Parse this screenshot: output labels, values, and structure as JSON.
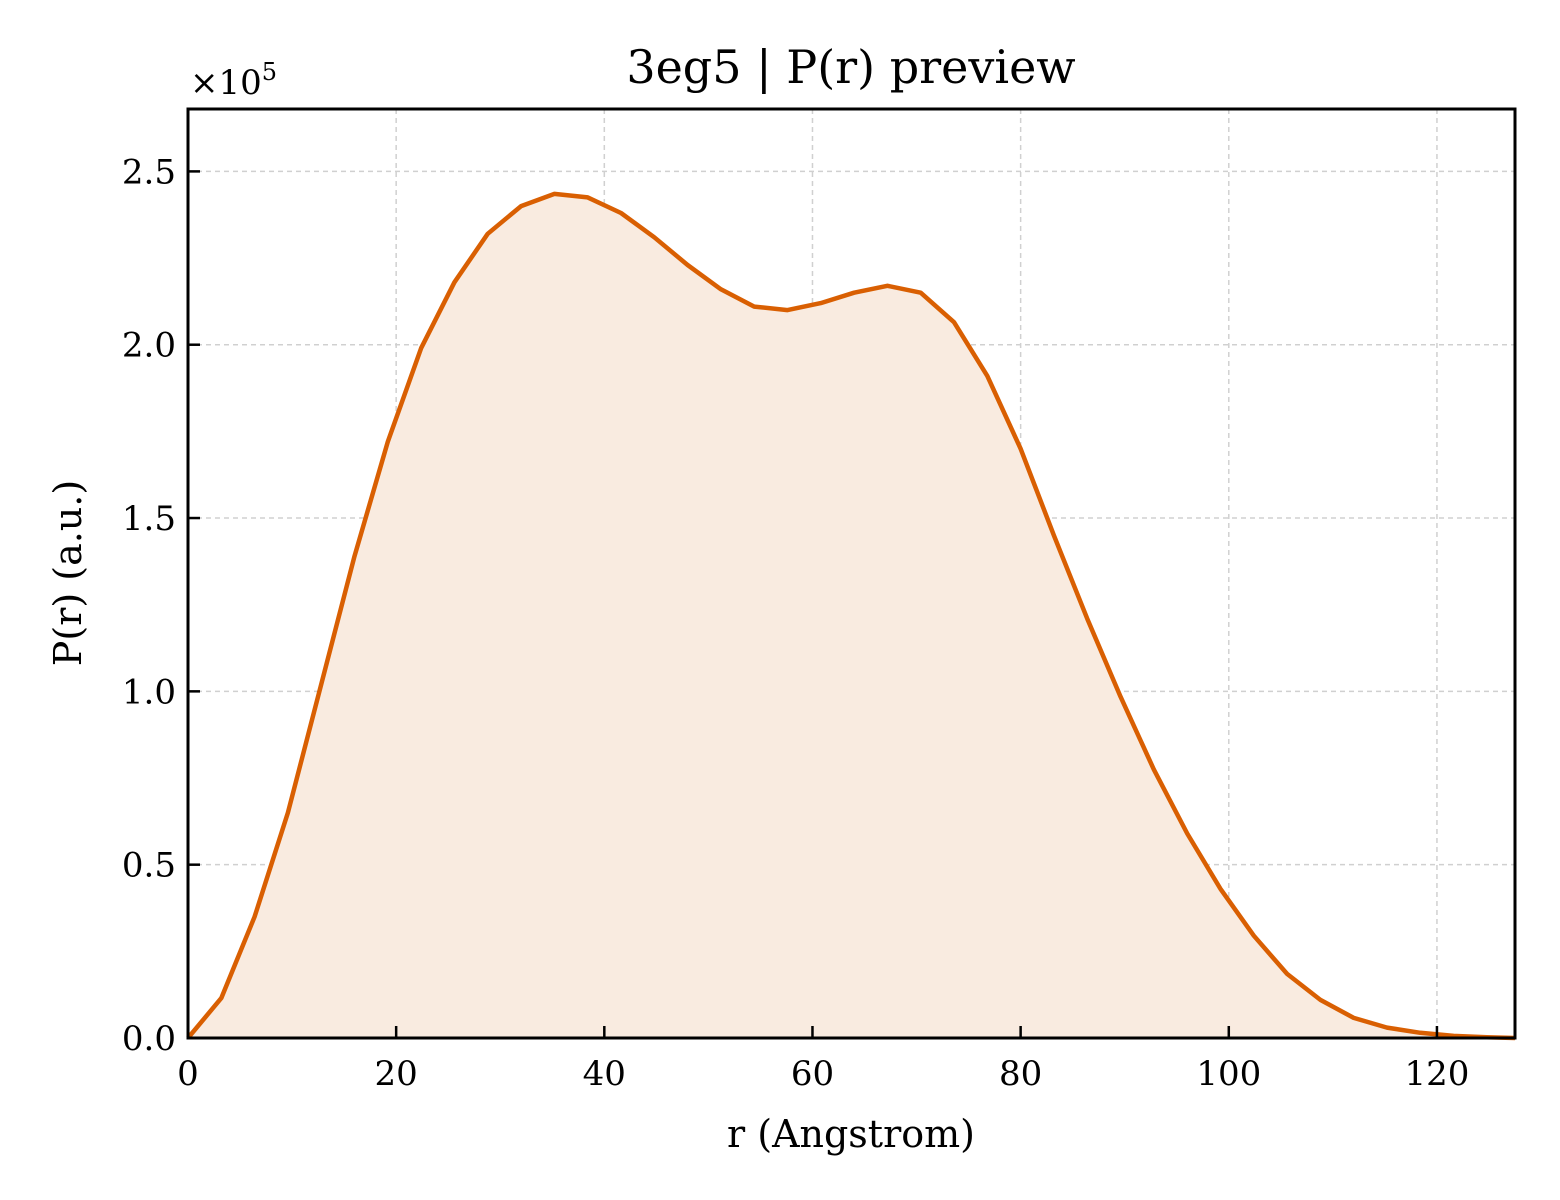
{
  "chart_data": {
    "type": "area",
    "title": "3eg5 | P(r) preview",
    "xlabel": "r (Angstrom)",
    "ylabel": "P(r) (a.u.)",
    "y_multiplier_base": "×10",
    "y_multiplier_exp": "5",
    "xlim": [
      0,
      127.5
    ],
    "ylim": [
      0,
      2.68
    ],
    "xticks": [
      0,
      20,
      40,
      60,
      80,
      100,
      120
    ],
    "xtick_labels": [
      "0",
      "20",
      "40",
      "60",
      "80",
      "100",
      "120"
    ],
    "yticks": [
      0.0,
      0.5,
      1.0,
      1.5,
      2.0,
      2.5
    ],
    "ytick_labels": [
      "0.0",
      "0.5",
      "1.0",
      "1.5",
      "2.0",
      "2.5"
    ],
    "grid": true,
    "line_color": "#d95f02",
    "fill_color": "#f9ebe0",
    "series": [
      {
        "x": [
          0,
          3.2,
          6.4,
          9.6,
          12.8,
          16.0,
          19.2,
          22.4,
          25.6,
          28.8,
          32.0,
          35.2,
          38.4,
          41.6,
          44.8,
          48.0,
          51.2,
          54.4,
          57.6,
          60.8,
          64.0,
          67.2,
          70.4,
          73.6,
          76.8,
          80.0,
          83.2,
          86.4,
          89.6,
          92.8,
          96.0,
          99.2,
          102.4,
          105.6,
          108.8,
          112.0,
          115.2,
          118.4,
          121.6,
          124.8,
          127.5
        ],
        "values": [
          0.0,
          0.115,
          0.35,
          0.65,
          1.02,
          1.39,
          1.72,
          1.99,
          2.18,
          2.32,
          2.4,
          2.435,
          2.425,
          2.38,
          2.31,
          2.23,
          2.16,
          2.11,
          2.1,
          2.12,
          2.15,
          2.17,
          2.15,
          2.065,
          1.91,
          1.7,
          1.45,
          1.21,
          0.985,
          0.775,
          0.59,
          0.43,
          0.295,
          0.185,
          0.11,
          0.058,
          0.03,
          0.015,
          0.006,
          0.002,
          0.0
        ]
      }
    ]
  }
}
